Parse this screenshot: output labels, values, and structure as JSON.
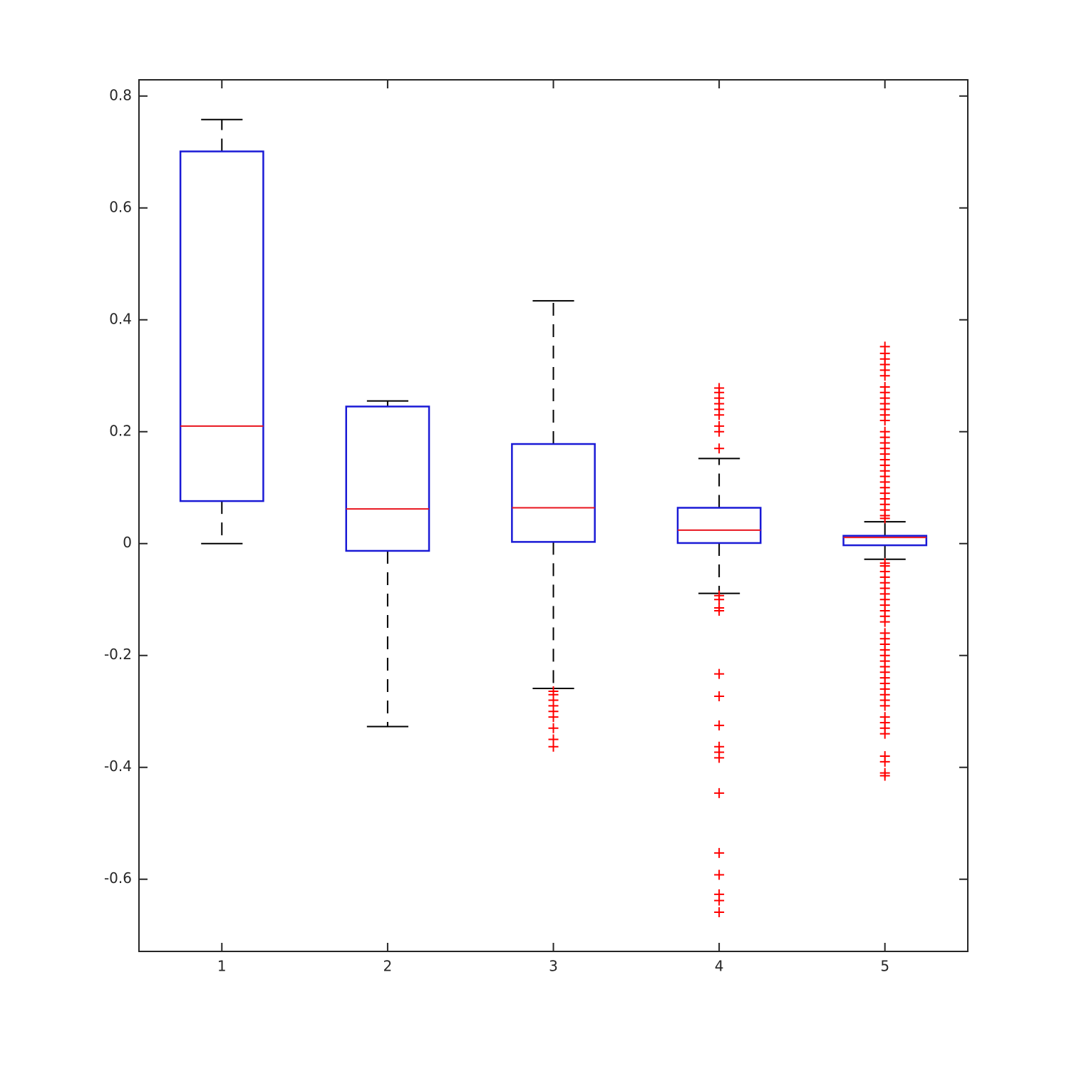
{
  "chart_data": {
    "type": "box",
    "categories": [
      "1",
      "2",
      "3",
      "4",
      "5"
    ],
    "box_color": "#1a1ad6",
    "median_color": "#e8141e",
    "whisker_color": "#000000",
    "outlier_color": "#ff0000",
    "ylim": [
      -0.729,
      0.829
    ],
    "yticks": [
      -0.6,
      -0.4,
      -0.2,
      0,
      0.2,
      0.4,
      0.6,
      0.8
    ],
    "boxes": [
      {
        "whisker_low": 0,
        "q1": 0.076,
        "median": 0.21,
        "q3": 0.701,
        "whisker_high": 0.758,
        "outliers": []
      },
      {
        "whisker_low": -0.327,
        "q1": -0.013,
        "median": 0.062,
        "q3": 0.245,
        "whisker_high": 0.255,
        "outliers": []
      },
      {
        "whisker_low": -0.259,
        "q1": 0.003,
        "median": 0.064,
        "q3": 0.178,
        "whisker_high": 0.434,
        "outliers": [
          -0.264,
          -0.27,
          -0.28,
          -0.29,
          -0.3,
          -0.31,
          -0.33,
          -0.35,
          -0.363
        ]
      },
      {
        "whisker_low": -0.089,
        "q1": 0.001,
        "median": 0.024,
        "q3": 0.064,
        "whisker_high": 0.152,
        "outliers": [
          0.278,
          0.27,
          0.26,
          0.25,
          0.24,
          0.23,
          0.21,
          0.2,
          0.17,
          -0.093,
          -0.1,
          -0.115,
          -0.12,
          -0.233,
          -0.273,
          -0.325,
          -0.363,
          -0.373,
          -0.383,
          -0.446,
          -0.553,
          -0.592,
          -0.627,
          -0.638,
          -0.659
        ]
      },
      {
        "whisker_low": -0.028,
        "q1": -0.003,
        "median": 0.011,
        "q3": 0.014,
        "whisker_high": 0.039,
        "outliers": [
          0.045,
          0.05,
          0.06,
          0.07,
          0.08,
          0.09,
          0.1,
          0.11,
          0.12,
          0.13,
          0.14,
          0.15,
          0.16,
          0.17,
          0.18,
          0.19,
          0.2,
          0.22,
          0.23,
          0.24,
          0.25,
          0.26,
          0.27,
          0.28,
          0.3,
          0.31,
          0.32,
          0.33,
          0.34,
          0.352,
          -0.035,
          -0.04,
          -0.05,
          -0.06,
          -0.07,
          -0.08,
          -0.09,
          -0.1,
          -0.11,
          -0.12,
          -0.13,
          -0.14,
          -0.16,
          -0.17,
          -0.18,
          -0.19,
          -0.2,
          -0.21,
          -0.22,
          -0.23,
          -0.24,
          -0.25,
          -0.26,
          -0.27,
          -0.28,
          -0.29,
          -0.31,
          -0.32,
          -0.33,
          -0.34,
          -0.38,
          -0.39,
          -0.41,
          -0.415
        ]
      }
    ]
  }
}
